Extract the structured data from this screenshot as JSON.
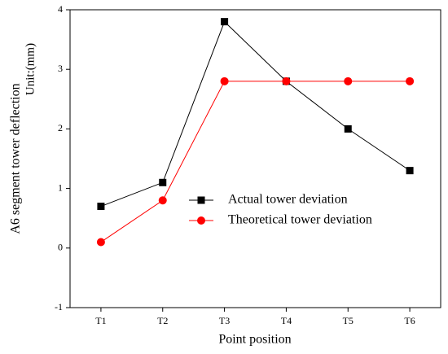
{
  "chart_data": {
    "type": "line",
    "y_label": [
      "A6 segment tower deflection",
      "Unit:(mm)"
    ],
    "x_label": "Point position",
    "categories": [
      "T1",
      "T2",
      "T3",
      "T4",
      "T5",
      "T6"
    ],
    "series": [
      {
        "name": "Actual tower deviation",
        "color": "#000000",
        "marker": "square",
        "values": [
          0.7,
          1.1,
          3.8,
          2.8,
          2.0,
          1.3
        ]
      },
      {
        "name": "Theoretical tower deviation",
        "color": "#ff0000",
        "marker": "circle",
        "values": [
          0.1,
          0.8,
          2.8,
          2.8,
          2.8,
          2.8
        ]
      }
    ],
    "ylim": [
      -1,
      4
    ],
    "yticks": [
      -1,
      0,
      1,
      2,
      3,
      4
    ],
    "grid": false,
    "legend": "center"
  }
}
